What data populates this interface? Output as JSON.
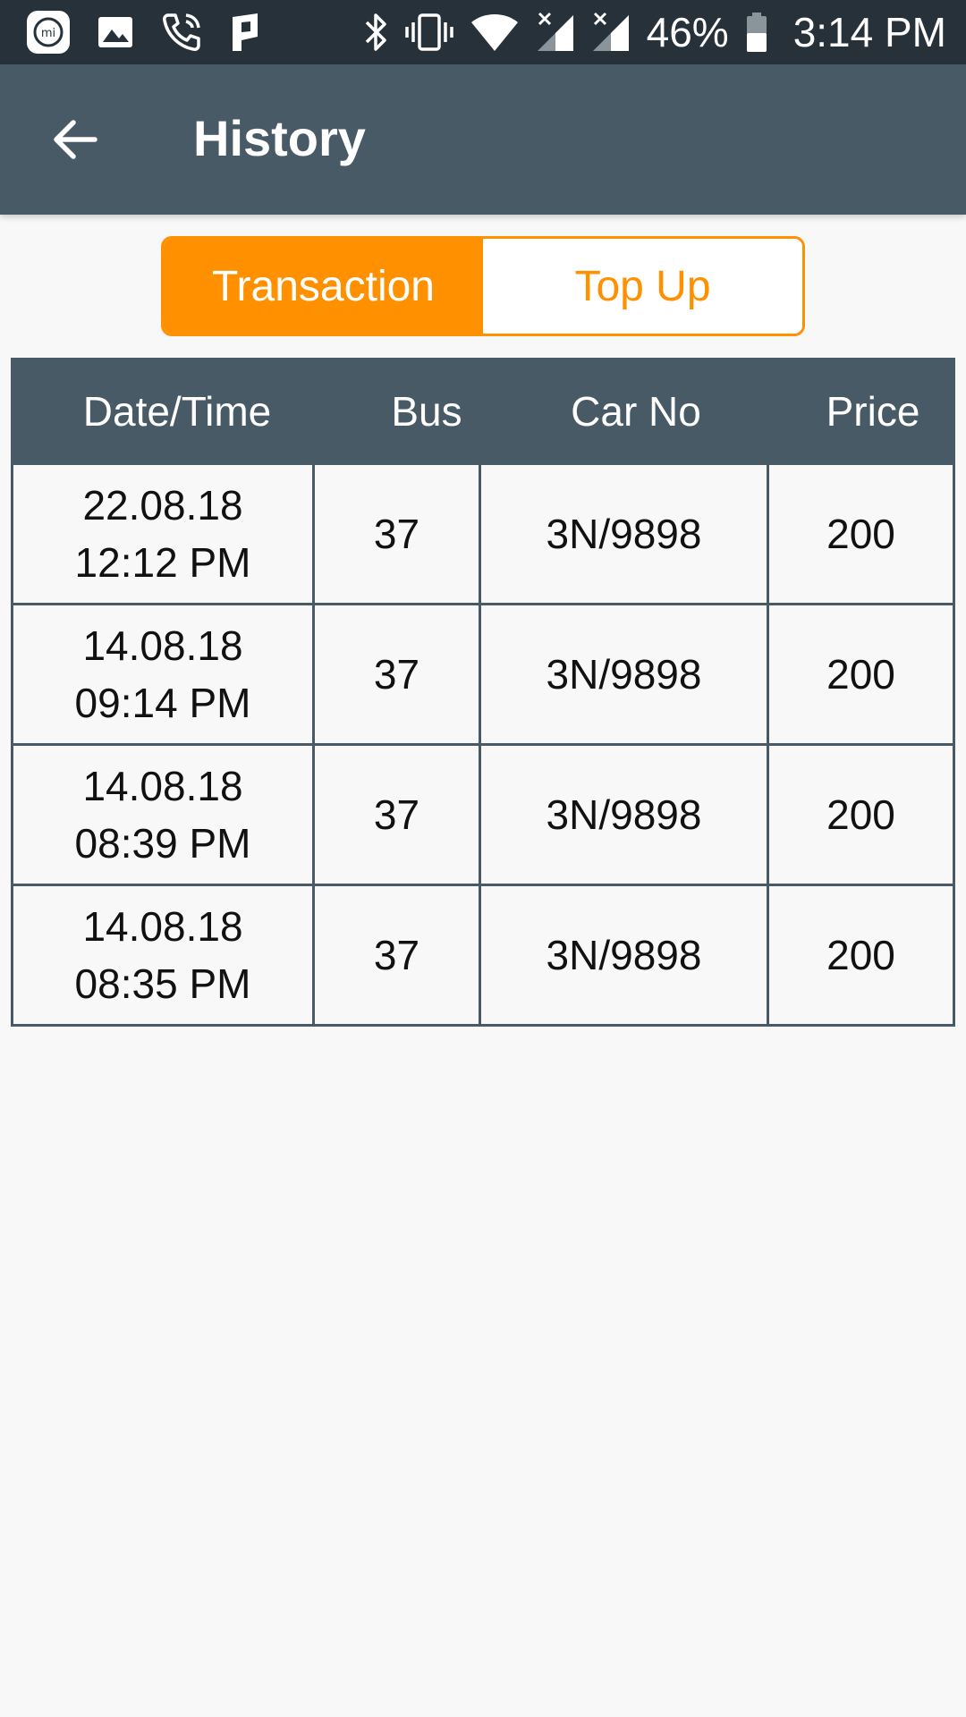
{
  "status_bar": {
    "left_icons": [
      "mi-app-icon",
      "gallery-icon",
      "phone-call-icon",
      "parking-app-icon"
    ],
    "right_icons": [
      "bluetooth-icon",
      "vibrate-icon",
      "wifi-icon",
      "signal-icon",
      "signal-icon"
    ],
    "battery": "46%",
    "time": "3:14 PM"
  },
  "app_bar": {
    "title": "History",
    "back_icon": "back-arrow-icon",
    "color": "#485a66"
  },
  "tabs": {
    "items": [
      {
        "label": "Transaction",
        "selected": true
      },
      {
        "label": "Top Up",
        "selected": false
      }
    ],
    "accent": "#ff9000"
  },
  "table": {
    "headers": [
      "Date/Time",
      "Bus",
      "Car No",
      "Price"
    ],
    "rows": [
      {
        "date": "22.08.18",
        "time": "12:12 PM",
        "bus": "37",
        "car_no": "3N/9898",
        "price": "200"
      },
      {
        "date": "14.08.18",
        "time": "09:14 PM",
        "bus": "37",
        "car_no": "3N/9898",
        "price": "200"
      },
      {
        "date": "14.08.18",
        "time": "08:39 PM",
        "bus": "37",
        "car_no": "3N/9898",
        "price": "200"
      },
      {
        "date": "14.08.18",
        "time": "08:35 PM",
        "bus": "37",
        "car_no": "3N/9898",
        "price": "200"
      }
    ]
  }
}
